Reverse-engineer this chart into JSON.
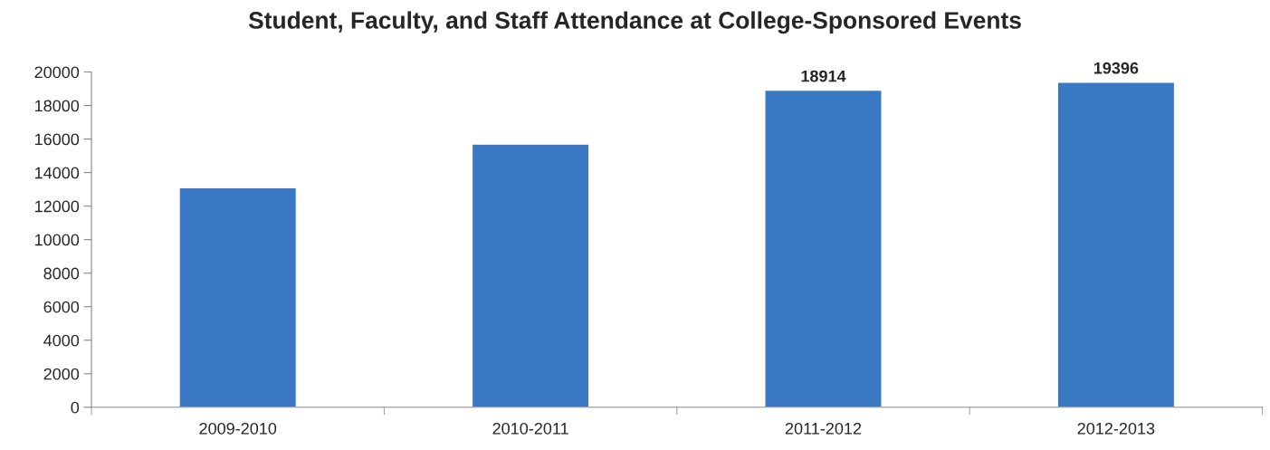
{
  "chart_data": {
    "type": "bar",
    "title": "Student, Faculty, and Staff Attendance at College-Sponsored Events",
    "categories": [
      "2009-2010",
      "2010-2011",
      "2011-2012",
      "2012-2013"
    ],
    "values": [
      13100,
      15700,
      18914,
      19396
    ],
    "value_labels": [
      null,
      null,
      "18914",
      "19396"
    ],
    "color": "#3a78c4",
    "ylim": [
      0,
      20000
    ],
    "yticks": [
      0,
      2000,
      4000,
      6000,
      8000,
      10000,
      12000,
      14000,
      16000,
      18000,
      20000
    ],
    "grid": false
  }
}
